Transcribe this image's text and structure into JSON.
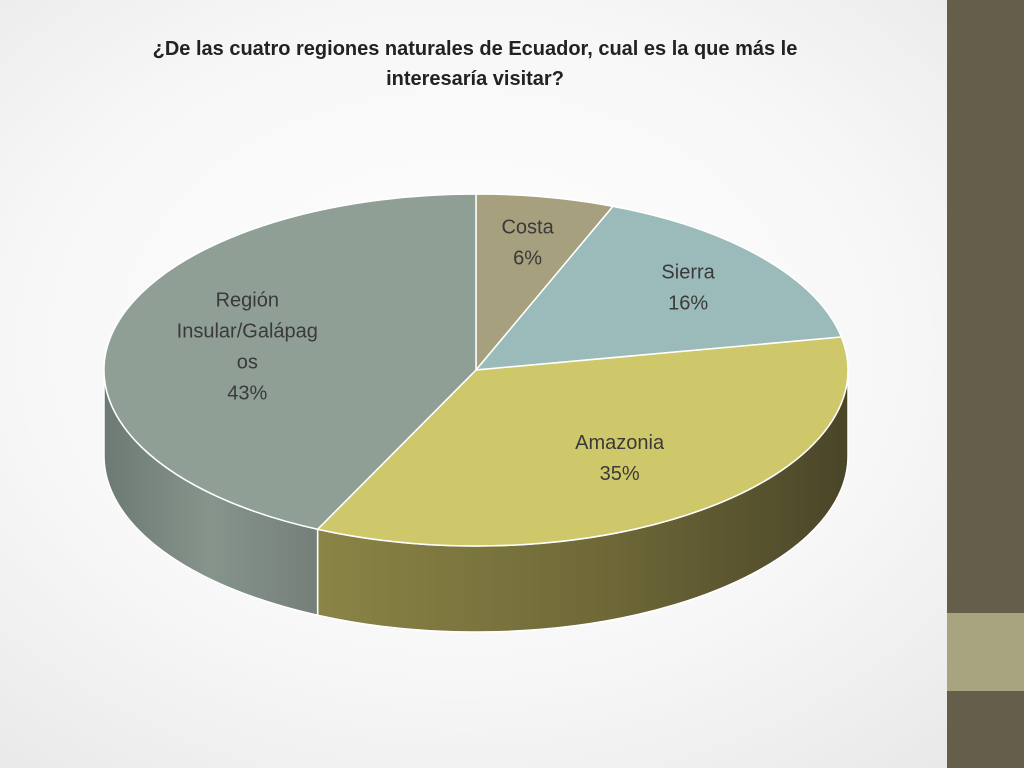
{
  "chart_data": {
    "type": "pie",
    "title": "¿De las cuatro regiones naturales de Ecuador, cual es la que más le interesaría visitar?",
    "slices": [
      {
        "label_lines": [
          "Costa"
        ],
        "value": 6,
        "value_label": "6%",
        "color": "#a6a07e"
      },
      {
        "label_lines": [
          "Sierra"
        ],
        "value": 16,
        "value_label": "16%",
        "color": "#9bbbbb"
      },
      {
        "label_lines": [
          "Amazonia"
        ],
        "value": 35,
        "value_label": "35%",
        "color": "#cfc86a"
      },
      {
        "label_lines": [
          "Región",
          "Insular/Galápag",
          "os"
        ],
        "value": 43,
        "value_label": "43%",
        "color": "#8f9f96"
      }
    ]
  },
  "theme": {
    "sidebar_color": "#655e4a",
    "sidebar_band_color": "#a8a47f"
  }
}
